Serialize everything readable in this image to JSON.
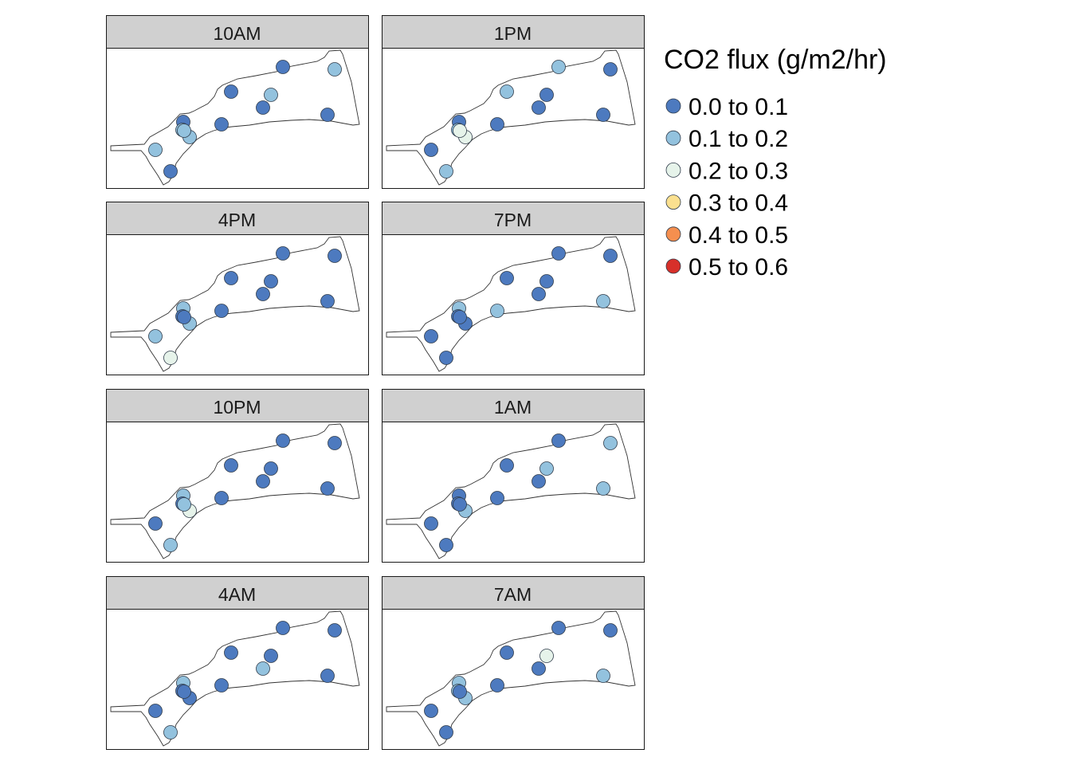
{
  "legend": {
    "title": "CO2 flux (g/m2/hr)",
    "items": [
      {
        "label": "0.0 to 0.1",
        "color": "#4d7abf"
      },
      {
        "label": "0.1 to 0.2",
        "color": "#93c2de"
      },
      {
        "label": "0.2 to 0.3",
        "color": "#e6f3ea"
      },
      {
        "label": "0.3 to 0.4",
        "color": "#fbe08f"
      },
      {
        "label": "0.4 to 0.5",
        "color": "#f58f4f"
      },
      {
        "label": "0.5 to 0.6",
        "color": "#d7302a"
      }
    ]
  },
  "panels": [
    {
      "title": "10AM",
      "classes": [
        1,
        0,
        0,
        1,
        1,
        1,
        0,
        0,
        0,
        1,
        0,
        0,
        1
      ]
    },
    {
      "title": "1PM",
      "classes": [
        0,
        1,
        0,
        1,
        2,
        2,
        0,
        1,
        0,
        0,
        1,
        0,
        0
      ]
    },
    {
      "title": "4PM",
      "classes": [
        1,
        2,
        1,
        0,
        1,
        0,
        0,
        0,
        0,
        0,
        0,
        0,
        0
      ]
    },
    {
      "title": "7PM",
      "classes": [
        0,
        0,
        1,
        0,
        0,
        0,
        1,
        0,
        0,
        0,
        0,
        1,
        0
      ]
    },
    {
      "title": "10PM",
      "classes": [
        0,
        1,
        1,
        0,
        2,
        1,
        0,
        0,
        0,
        0,
        0,
        0,
        0
      ]
    },
    {
      "title": "1AM",
      "classes": [
        0,
        0,
        0,
        0,
        1,
        0,
        0,
        0,
        0,
        1,
        0,
        1,
        1
      ]
    },
    {
      "title": "4AM",
      "classes": [
        0,
        1,
        1,
        0,
        0,
        0,
        0,
        0,
        1,
        0,
        0,
        0,
        0
      ]
    },
    {
      "title": "7AM",
      "classes": [
        0,
        0,
        1,
        1,
        1,
        0,
        0,
        0,
        0,
        2,
        0,
        1,
        0
      ]
    }
  ]
}
